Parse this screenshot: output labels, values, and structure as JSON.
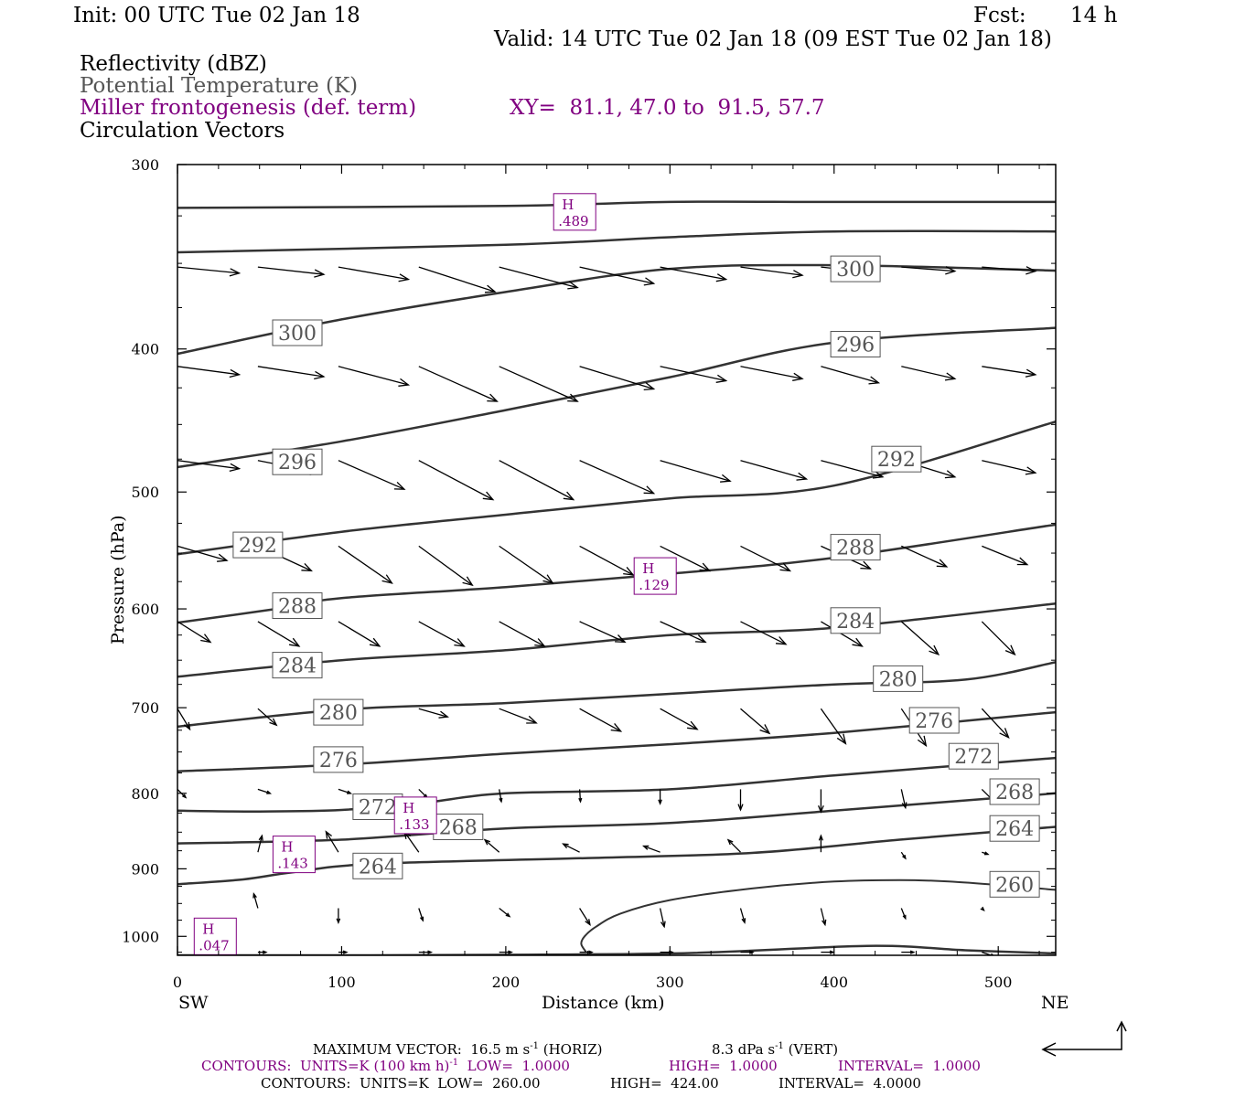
{
  "header": {
    "init": "Init: 00 UTC Tue 02 Jan 18",
    "fcst_label": "Fcst:",
    "fcst_value": "14 h",
    "valid": "Valid: 14 UTC Tue 02 Jan 18 (09 EST Tue 02 Jan 18)"
  },
  "fields": {
    "reflectivity": "Reflectivity (dBZ)",
    "theta": "Potential Temperature (K)",
    "frontogenesis": "Miller frontogenesis (def. term)",
    "xy": "XY=  81.1, 47.0 to  91.5, 57.7",
    "vectors": "Circulation Vectors"
  },
  "footer": {
    "max_vector": "MAXIMUM VECTOR:  16.5 m s",
    "sup1": "-1",
    "horiz": " (HORIZ)",
    "vert_val": "8.3 dPa s",
    "sup2": "-1",
    "vert": " (VERT)",
    "contours1_a": "CONTOURS:  UNITS=K (100 km h)",
    "contours1_sup": "-1",
    "contours1_b": "  LOW=  1.0000",
    "contours1_high": "HIGH=  1.0000",
    "contours1_int": "INTERVAL=  1.0000",
    "contours2_a": "CONTOURS:  UNITS=K  LOW=  260.00",
    "contours2_high": "HIGH=  424.00",
    "contours2_int": "INTERVAL=  4.0000"
  },
  "colors": {
    "purple": "#800080",
    "gray": "#555555",
    "line": "#333333"
  },
  "chart_data": {
    "type": "line",
    "xlabel": "Distance (km)",
    "ylabel": "Pressure (hPa)",
    "xlim": [
      0,
      535
    ],
    "ylim": [
      1030,
      300
    ],
    "y_scale": "log",
    "x_ticks": [
      "0",
      "100",
      "200",
      "300",
      "400",
      "500"
    ],
    "y_ticks": [
      "300",
      "400",
      "500",
      "600",
      "700",
      "800",
      "900",
      "1000"
    ],
    "x_end_labels": {
      "left": "SW",
      "right": "NE"
    },
    "theta_contours": [
      {
        "name": "260",
        "label": "260",
        "points": [
          [
            0,
            1030
          ],
          [
            100,
            1030
          ],
          [
            300,
            1027
          ],
          [
            420,
            1015
          ],
          [
            480,
            1022
          ],
          [
            535,
            1027
          ]
        ]
      },
      {
        "name": "264",
        "label": "264",
        "points": [
          [
            0,
            922
          ],
          [
            40,
            915
          ],
          [
            70,
            905
          ],
          [
            120,
            893
          ],
          [
            250,
            885
          ],
          [
            350,
            878
          ],
          [
            440,
            860
          ],
          [
            535,
            843
          ]
        ]
      },
      {
        "name": "268",
        "label": "268",
        "points": [
          [
            0,
            865
          ],
          [
            100,
            860
          ],
          [
            200,
            845
          ],
          [
            300,
            838
          ],
          [
            400,
            822
          ],
          [
            535,
            800
          ]
        ]
      },
      {
        "name": "272",
        "label": "272",
        "points": [
          [
            0,
            822
          ],
          [
            50,
            823
          ],
          [
            100,
            821
          ],
          [
            150,
            812
          ],
          [
            200,
            800
          ],
          [
            300,
            795
          ],
          [
            400,
            778
          ],
          [
            535,
            757
          ]
        ]
      },
      {
        "name": "276",
        "label": "276",
        "points": [
          [
            0,
            773
          ],
          [
            100,
            765
          ],
          [
            200,
            752
          ],
          [
            300,
            741
          ],
          [
            400,
            728
          ],
          [
            535,
            705
          ]
        ]
      },
      {
        "name": "280",
        "label": "280",
        "points": [
          [
            0,
            721
          ],
          [
            100,
            702
          ],
          [
            200,
            695
          ],
          [
            300,
            685
          ],
          [
            400,
            675
          ],
          [
            480,
            670
          ],
          [
            535,
            652
          ]
        ]
      },
      {
        "name": "284",
        "label": "284",
        "points": [
          [
            0,
            667
          ],
          [
            100,
            650
          ],
          [
            200,
            640
          ],
          [
            300,
            625
          ],
          [
            400,
            618
          ],
          [
            535,
            595
          ]
        ]
      },
      {
        "name": "288",
        "label": "288",
        "points": [
          [
            0,
            613
          ],
          [
            60,
            600
          ],
          [
            100,
            590
          ],
          [
            200,
            580
          ],
          [
            300,
            568
          ],
          [
            400,
            554
          ],
          [
            535,
            526
          ]
        ]
      },
      {
        "name": "292",
        "label": "292",
        "points": [
          [
            0,
            551
          ],
          [
            100,
            532
          ],
          [
            200,
            518
          ],
          [
            300,
            505
          ],
          [
            400,
            495
          ],
          [
            535,
            448
          ]
        ]
      },
      {
        "name": "296",
        "label": "296",
        "points": [
          [
            0,
            481
          ],
          [
            100,
            462
          ],
          [
            200,
            440
          ],
          [
            300,
            418
          ],
          [
            400,
            396
          ],
          [
            535,
            387
          ]
        ]
      },
      {
        "name": "300",
        "label": "300",
        "points": [
          [
            0,
            403
          ],
          [
            100,
            382
          ],
          [
            200,
            366
          ],
          [
            300,
            353
          ],
          [
            400,
            351
          ],
          [
            535,
            354
          ]
        ]
      },
      {
        "name": "308a",
        "label": "",
        "points": [
          [
            0,
            344
          ],
          [
            200,
            340
          ],
          [
            300,
            336
          ],
          [
            400,
            333
          ],
          [
            535,
            333
          ]
        ]
      },
      {
        "name": "316a",
        "label": "",
        "points": [
          [
            0,
            321
          ],
          [
            200,
            320
          ],
          [
            300,
            318
          ],
          [
            400,
            318
          ],
          [
            535,
            318
          ]
        ]
      }
    ],
    "contour_labels": [
      {
        "text": "300",
        "x": 73,
        "p": 390
      },
      {
        "text": "300",
        "x": 413,
        "p": 353
      },
      {
        "text": "296",
        "x": 413,
        "p": 397
      },
      {
        "text": "296",
        "x": 73,
        "p": 477
      },
      {
        "text": "292",
        "x": 438,
        "p": 475
      },
      {
        "text": "292",
        "x": 49,
        "p": 543
      },
      {
        "text": "288",
        "x": 413,
        "p": 545
      },
      {
        "text": "288",
        "x": 73,
        "p": 597
      },
      {
        "text": "284",
        "x": 413,
        "p": 611
      },
      {
        "text": "284",
        "x": 73,
        "p": 655
      },
      {
        "text": "280",
        "x": 439,
        "p": 669
      },
      {
        "text": "280",
        "x": 98,
        "p": 705
      },
      {
        "text": "276",
        "x": 461,
        "p": 714
      },
      {
        "text": "276",
        "x": 98,
        "p": 759
      },
      {
        "text": "272",
        "x": 485,
        "p": 755
      },
      {
        "text": "272",
        "x": 122,
        "p": 817
      },
      {
        "text": "268",
        "x": 510,
        "p": 798
      },
      {
        "text": "268",
        "x": 171,
        "p": 843
      },
      {
        "text": "264",
        "x": 510,
        "p": 845
      },
      {
        "text": "264",
        "x": 122,
        "p": 896
      },
      {
        "text": "260",
        "x": 510,
        "p": 922
      }
    ],
    "frontogenesis_boundary": {
      "points": [
        [
          249,
          1025
        ],
        [
          246,
          1012
        ],
        [
          248,
          1000
        ],
        [
          255,
          985
        ],
        [
          270,
          965
        ],
        [
          300,
          945
        ],
        [
          350,
          928
        ],
        [
          400,
          918
        ],
        [
          440,
          916
        ],
        [
          470,
          918
        ],
        [
          510,
          925
        ],
        [
          535,
          930
        ]
      ]
    },
    "frontogenesis_maxima": [
      {
        "label": "H",
        "value": ".489",
        "x": 242,
        "p": 323
      },
      {
        "label": "H",
        "value": ".129",
        "x": 291,
        "p": 570
      },
      {
        "label": "H",
        "value": ".133",
        "x": 145,
        "p": 828
      },
      {
        "label": "H",
        "value": ".143",
        "x": 71,
        "p": 880
      },
      {
        "label": "H",
        "value": ".047",
        "x": 23,
        "p": 1000
      }
    ],
    "vectors": [
      {
        "p": 352,
        "x": [
          0,
          49,
          98,
          147,
          196,
          245,
          294,
          343,
          392,
          441,
          490
        ],
        "u": [
          1.5,
          1.6,
          1.7,
          1.85,
          1.9,
          1.8,
          1.6,
          1.5,
          1.4,
          1.3,
          1.3
        ],
        "w": [
          0.15,
          0.18,
          0.3,
          0.6,
          0.5,
          0.4,
          0.3,
          0.2,
          0.15,
          0.1,
          0.1
        ]
      },
      {
        "p": 411,
        "x": [
          0,
          49,
          98,
          147,
          196,
          245,
          294,
          343,
          392,
          441,
          490
        ],
        "u": [
          1.5,
          1.6,
          1.7,
          1.9,
          1.9,
          1.8,
          1.6,
          1.5,
          1.4,
          1.3,
          1.3
        ],
        "w": [
          0.2,
          0.25,
          0.45,
          0.85,
          0.85,
          0.55,
          0.35,
          0.3,
          0.4,
          0.3,
          0.2
        ]
      },
      {
        "p": 476,
        "x": [
          0,
          49,
          98,
          147,
          196,
          245,
          294,
          343,
          392,
          441,
          490
        ],
        "u": [
          1.5,
          1.5,
          1.6,
          1.8,
          1.8,
          1.8,
          1.7,
          1.6,
          1.5,
          1.3,
          1.3
        ],
        "w": [
          0.2,
          0.3,
          0.7,
          0.95,
          0.95,
          0.8,
          0.5,
          0.45,
          0.4,
          0.4,
          0.3
        ]
      },
      {
        "p": 544,
        "x": [
          0,
          49,
          98,
          147,
          196,
          245,
          294,
          343,
          392,
          441,
          490
        ],
        "u": [
          1.2,
          1.3,
          1.3,
          1.3,
          1.3,
          1.3,
          1.2,
          1.2,
          1.2,
          1.1,
          1.1
        ],
        "w": [
          0.35,
          0.6,
          0.9,
          0.95,
          0.9,
          0.7,
          0.6,
          0.6,
          0.55,
          0.5,
          0.45
        ]
      },
      {
        "p": 612,
        "x": [
          0,
          49,
          98,
          147,
          196,
          245,
          294,
          343,
          392,
          441,
          490
        ],
        "u": [
          0.8,
          1.0,
          1.0,
          1.1,
          1.1,
          1.1,
          1.1,
          1.1,
          1.0,
          0.9,
          0.8
        ],
        "w": [
          0.5,
          0.6,
          0.6,
          0.6,
          0.6,
          0.5,
          0.5,
          0.55,
          0.6,
          0.8,
          0.8
        ]
      },
      {
        "p": 701,
        "x": [
          0,
          49,
          98,
          147,
          196,
          245,
          294,
          343,
          392,
          441,
          490
        ],
        "u": [
          0.3,
          0.45,
          0.5,
          0.7,
          0.9,
          1.0,
          0.9,
          0.7,
          0.6,
          0.6,
          0.65
        ],
        "w": [
          0.5,
          0.4,
          0.3,
          0.2,
          0.35,
          0.55,
          0.5,
          0.6,
          0.85,
          0.9,
          0.7
        ]
      },
      {
        "p": 795,
        "x": [
          0,
          49,
          98,
          147,
          196,
          245,
          294,
          343,
          392,
          441,
          490
        ],
        "u": [
          0.2,
          0.3,
          0.3,
          0.2,
          0.05,
          0.02,
          0.0,
          0.0,
          0.0,
          0.1,
          0.35
        ],
        "w": [
          0.2,
          0.1,
          0.1,
          0.2,
          0.3,
          0.3,
          0.35,
          0.5,
          0.55,
          0.45,
          0.35
        ]
      },
      {
        "p": 877,
        "x": [
          49,
          98,
          147,
          196,
          245,
          294,
          343,
          392,
          441,
          490
        ],
        "u": [
          0.1,
          -0.3,
          -0.35,
          -0.35,
          -0.4,
          -0.4,
          -0.3,
          0.0,
          0.1,
          0.15
        ],
        "w": [
          -0.4,
          -0.5,
          -0.5,
          -0.3,
          -0.2,
          -0.15,
          -0.3,
          -0.4,
          0.15,
          0.05
        ]
      },
      {
        "p": 957,
        "x": [
          49,
          98,
          147,
          196,
          245,
          294,
          343,
          392,
          441,
          490
        ],
        "u": [
          -0.1,
          0.0,
          0.1,
          0.25,
          0.25,
          0.1,
          0.1,
          0.1,
          0.1,
          0.05
        ],
        "w": [
          -0.35,
          0.35,
          0.3,
          0.2,
          0.4,
          0.45,
          0.35,
          0.4,
          0.25,
          0.05
        ]
      },
      {
        "p": 1025,
        "x": [
          49,
          98,
          147,
          196,
          245,
          294,
          343,
          392,
          441,
          490
        ],
        "u": [
          0.2,
          0.2,
          0.3,
          0.3,
          0.3,
          0.3,
          0.3,
          0.3,
          0.3,
          0.3
        ],
        "w": [
          0.0,
          0.0,
          0.0,
          0.0,
          0.0,
          0.0,
          0.0,
          0.0,
          0.0,
          0.1
        ]
      }
    ]
  }
}
